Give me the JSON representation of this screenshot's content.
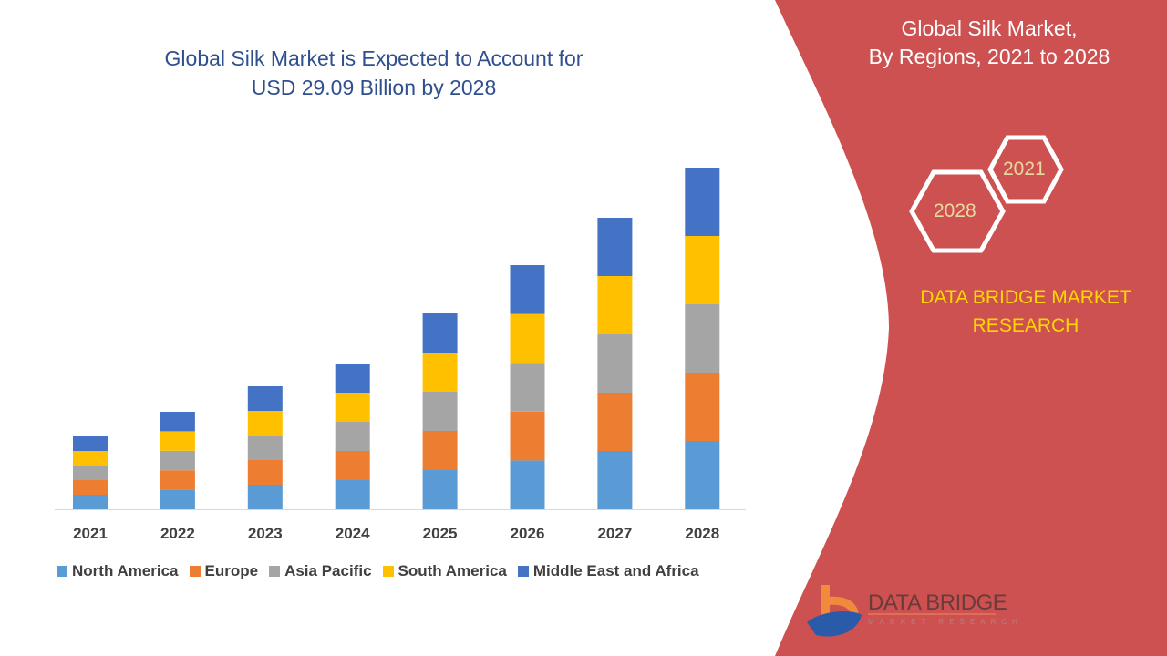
{
  "chart_data": {
    "type": "bar",
    "stacked": true,
    "title": "Global Silk Market is Expected to Account for USD 29.09 Billion by 2028",
    "title_lines": [
      "Global Silk Market is Expected to Account for",
      "USD 29.09 Billion by 2028"
    ],
    "categories": [
      "2021",
      "2022",
      "2023",
      "2024",
      "2025",
      "2026",
      "2027",
      "2028"
    ],
    "series": [
      {
        "name": "North America",
        "color": "#5b9bd5",
        "values": [
          16,
          21.4,
          27,
          32,
          43,
          53.6,
          64,
          75
        ]
      },
      {
        "name": "Europe",
        "color": "#ed7d31",
        "values": [
          16,
          21.4,
          27,
          32,
          43,
          53.6,
          64,
          75
        ]
      },
      {
        "name": "Asia Pacific",
        "color": "#a5a5a5",
        "values": [
          16,
          21.4,
          27,
          32,
          43,
          53.6,
          64,
          75
        ]
      },
      {
        "name": "South America",
        "color": "#ffc000",
        "values": [
          16,
          21.4,
          27,
          32,
          43,
          53.6,
          64,
          75
        ]
      },
      {
        "name": "Middle East and Africa",
        "color": "#4472c4",
        "values": [
          16,
          21.4,
          27,
          32,
          43,
          53.6,
          64,
          75
        ]
      }
    ],
    "xlabel": "",
    "ylabel": "",
    "y_axis_shown": false,
    "grid": false,
    "legend_position": "bottom"
  },
  "side_panel": {
    "title_lines": [
      "Global Silk Market,",
      "By Regions, 2021 to 2028"
    ],
    "hex_years": [
      "2021",
      "2028"
    ],
    "brand_lines": [
      "DATA BRIDGE MARKET",
      "RESEARCH"
    ],
    "panel_color": "#cd5150",
    "brand_color": "#ffd700"
  },
  "logo": {
    "name": "DATA BRIDGE",
    "tagline": "MARKET RESEARCH"
  }
}
